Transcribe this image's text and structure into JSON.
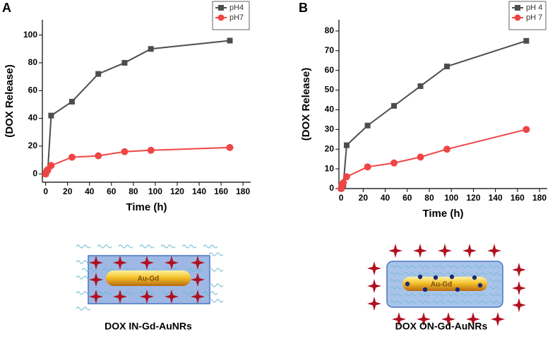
{
  "chart_data": [
    {
      "type": "line",
      "panel_label": "A",
      "x_label": "Time (h)",
      "y_label": "(DOX Release)",
      "x": [
        0,
        1,
        2,
        5,
        24,
        48,
        72,
        96,
        168
      ],
      "series": [
        {
          "name": "pH4",
          "color": "#4d4d4d",
          "marker": "square",
          "values": [
            0,
            2,
            3,
            42,
            52,
            72,
            80,
            90,
            96
          ]
        },
        {
          "name": "pH7",
          "color": "#f04545",
          "marker": "circle",
          "values": [
            0,
            2,
            3,
            6,
            12,
            13,
            16,
            17,
            19
          ]
        }
      ],
      "xlim": [
        -3,
        187
      ],
      "xticks": [
        0,
        20,
        40,
        60,
        80,
        100,
        120,
        140,
        160,
        180
      ],
      "ylim": [
        -6,
        111
      ],
      "yticks": [
        0,
        20,
        40,
        60,
        80,
        100
      ],
      "legend": "upper right",
      "illustration_label": "Au-Gd",
      "caption": "DOX IN-Gd-AuNRs"
    },
    {
      "type": "line",
      "panel_label": "B",
      "x_label": "Time (h)",
      "y_label": "(DOX Release)",
      "x": [
        0,
        1,
        2,
        5,
        24,
        48,
        72,
        96,
        168
      ],
      "series": [
        {
          "name": "pH 4",
          "color": "#4d4d4d",
          "marker": "square",
          "values": [
            0,
            1,
            2,
            22,
            32,
            42,
            52,
            62,
            75
          ]
        },
        {
          "name": "pH 7",
          "color": "#f04545",
          "marker": "circle",
          "values": [
            0,
            2,
            3,
            6,
            11,
            13,
            16,
            20,
            30
          ]
        }
      ],
      "xlim": [
        -2,
        187
      ],
      "xticks": [
        0,
        20,
        40,
        60,
        80,
        100,
        120,
        140,
        160,
        180
      ],
      "ylim": [
        0,
        85.7
      ],
      "yticks": [
        0,
        10,
        20,
        30,
        40,
        50,
        60,
        70,
        80
      ],
      "legend": "upper right",
      "illustration_label": "Au-Gd",
      "caption": "DOX ON-Gd-AuNRs"
    }
  ]
}
